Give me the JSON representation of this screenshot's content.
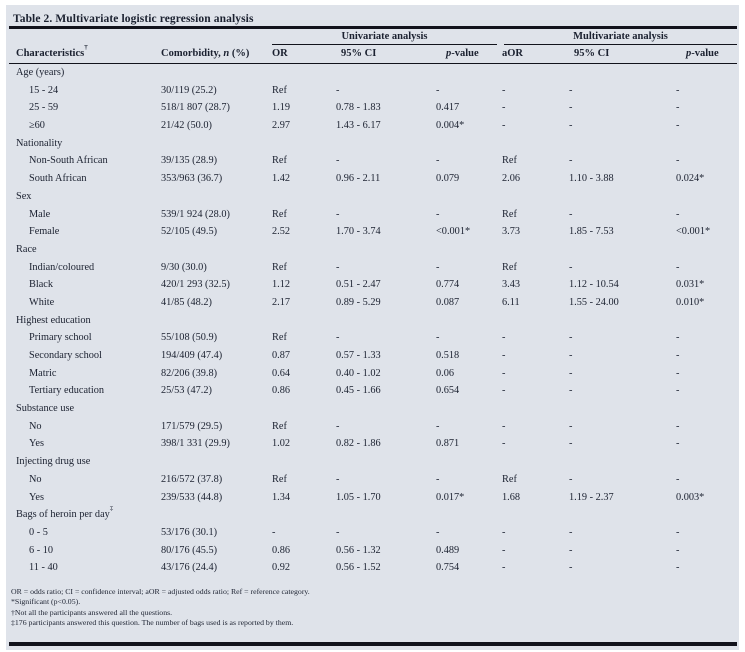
{
  "title": "Table 2. Multivariate logistic regression analysis",
  "colors": {
    "background": "#dfe3ea",
    "text": "#1b2130",
    "rule": "#12131c"
  },
  "table": {
    "group_headers": {
      "univariate": "Univariate analysis",
      "multivariate": "Multivariate analysis"
    },
    "columns": {
      "characteristics": "Characteristics",
      "characteristics_sup": "†",
      "comorbidity_prefix": "Comorbidity, ",
      "comorbidity_italic": "n",
      "comorbidity_suffix": " (%)",
      "or": "OR",
      "ci1": "95% CI",
      "p_italic": "p",
      "p_rest": "-value",
      "aor": "aOR",
      "ci2": "95% CI"
    },
    "rows": [
      {
        "type": "group",
        "label": "Age (years)"
      },
      {
        "type": "item",
        "cells": [
          "15 - 24",
          "30/119 (25.2)",
          "Ref",
          "-",
          "-",
          "-",
          "-",
          "-"
        ]
      },
      {
        "type": "item",
        "cells": [
          "25 - 59",
          "518/1 807 (28.7)",
          "1.19",
          "0.78 - 1.83",
          "0.417",
          "-",
          "-",
          "-"
        ]
      },
      {
        "type": "item",
        "cells": [
          "≥60",
          "21/42 (50.0)",
          "2.97",
          "1.43 - 6.17",
          "0.004*",
          "-",
          "-",
          "-"
        ]
      },
      {
        "type": "group",
        "label": "Nationality"
      },
      {
        "type": "item",
        "cells": [
          "Non-South African",
          "39/135 (28.9)",
          "Ref",
          "-",
          "-",
          "Ref",
          "-",
          "-"
        ]
      },
      {
        "type": "item",
        "cells": [
          "South African",
          "353/963 (36.7)",
          "1.42",
          "0.96 - 2.11",
          "0.079",
          "2.06",
          "1.10 - 3.88",
          "0.024*"
        ]
      },
      {
        "type": "group",
        "label": "Sex"
      },
      {
        "type": "item",
        "cells": [
          "Male",
          "539/1 924 (28.0)",
          "Ref",
          "-",
          "-",
          "Ref",
          "-",
          "-"
        ]
      },
      {
        "type": "item",
        "cells": [
          "Female",
          "52/105 (49.5)",
          "2.52",
          "1.70 - 3.74",
          "<0.001*",
          "3.73",
          "1.85 - 7.53",
          "<0.001*"
        ]
      },
      {
        "type": "group",
        "label": "Race"
      },
      {
        "type": "item",
        "cells": [
          "Indian/coloured",
          "9/30 (30.0)",
          "Ref",
          "-",
          "-",
          "Ref",
          "-",
          "-"
        ]
      },
      {
        "type": "item",
        "cells": [
          "Black",
          "420/1 293 (32.5)",
          "1.12",
          "0.51 - 2.47",
          "0.774",
          "3.43",
          "1.12 - 10.54",
          "0.031*"
        ]
      },
      {
        "type": "item",
        "cells": [
          "White",
          "41/85 (48.2)",
          "2.17",
          "0.89 - 5.29",
          "0.087",
          "6.11",
          "1.55 - 24.00",
          "0.010*"
        ]
      },
      {
        "type": "group",
        "label": "Highest education"
      },
      {
        "type": "item",
        "cells": [
          "Primary school",
          "55/108 (50.9)",
          "Ref",
          "-",
          "-",
          "-",
          "-",
          "-"
        ]
      },
      {
        "type": "item",
        "cells": [
          "Secondary school",
          "194/409 (47.4)",
          "0.87",
          "0.57 - 1.33",
          "0.518",
          "-",
          "-",
          "-"
        ]
      },
      {
        "type": "item",
        "cells": [
          "Matric",
          "82/206 (39.8)",
          "0.64",
          "0.40 - 1.02",
          "0.06",
          "-",
          "-",
          "-"
        ]
      },
      {
        "type": "item",
        "cells": [
          "Tertiary education",
          "25/53 (47.2)",
          "0.86",
          "0.45 - 1.66",
          "0.654",
          "-",
          "-",
          "-"
        ]
      },
      {
        "type": "group",
        "label": "Substance use"
      },
      {
        "type": "item",
        "cells": [
          "No",
          "171/579 (29.5)",
          "Ref",
          "-",
          "-",
          "-",
          "-",
          "-"
        ]
      },
      {
        "type": "item",
        "cells": [
          "Yes",
          "398/1 331 (29.9)",
          "1.02",
          "0.82 - 1.86",
          "0.871",
          "-",
          "-",
          "-"
        ]
      },
      {
        "type": "group",
        "label": "Injecting drug use"
      },
      {
        "type": "item",
        "cells": [
          "No",
          "216/572 (37.8)",
          "Ref",
          "-",
          "-",
          "Ref",
          "-",
          "-"
        ]
      },
      {
        "type": "item",
        "cells": [
          "Yes",
          "239/533 (44.8)",
          "1.34",
          "1.05 - 1.70",
          "0.017*",
          "1.68",
          "1.19 - 2.37",
          "0.003*"
        ]
      },
      {
        "type": "group",
        "label": "Bags of heroin per day‡"
      },
      {
        "type": "item",
        "cells": [
          "0 - 5",
          "53/176 (30.1)",
          "-",
          "-",
          "-",
          "-",
          "-",
          "-"
        ]
      },
      {
        "type": "item",
        "cells": [
          "6 - 10",
          "80/176 (45.5)",
          "0.86",
          "0.56 - 1.32",
          "0.489",
          "-",
          "-",
          "-"
        ]
      },
      {
        "type": "item",
        "cells": [
          "11 - 40",
          "43/176 (24.4)",
          "0.92",
          "0.56 - 1.52",
          "0.754",
          "-",
          "-",
          "-"
        ]
      }
    ]
  },
  "footnotes": [
    "OR = odds ratio; CI = confidence interval; aOR = adjusted odds ratio; Ref = reference category.",
    "*Significant (p<0.05).",
    "†Not all the participants answered all the questions.",
    "‡176 participants answered this question. The number of bags used is as reported by them."
  ]
}
